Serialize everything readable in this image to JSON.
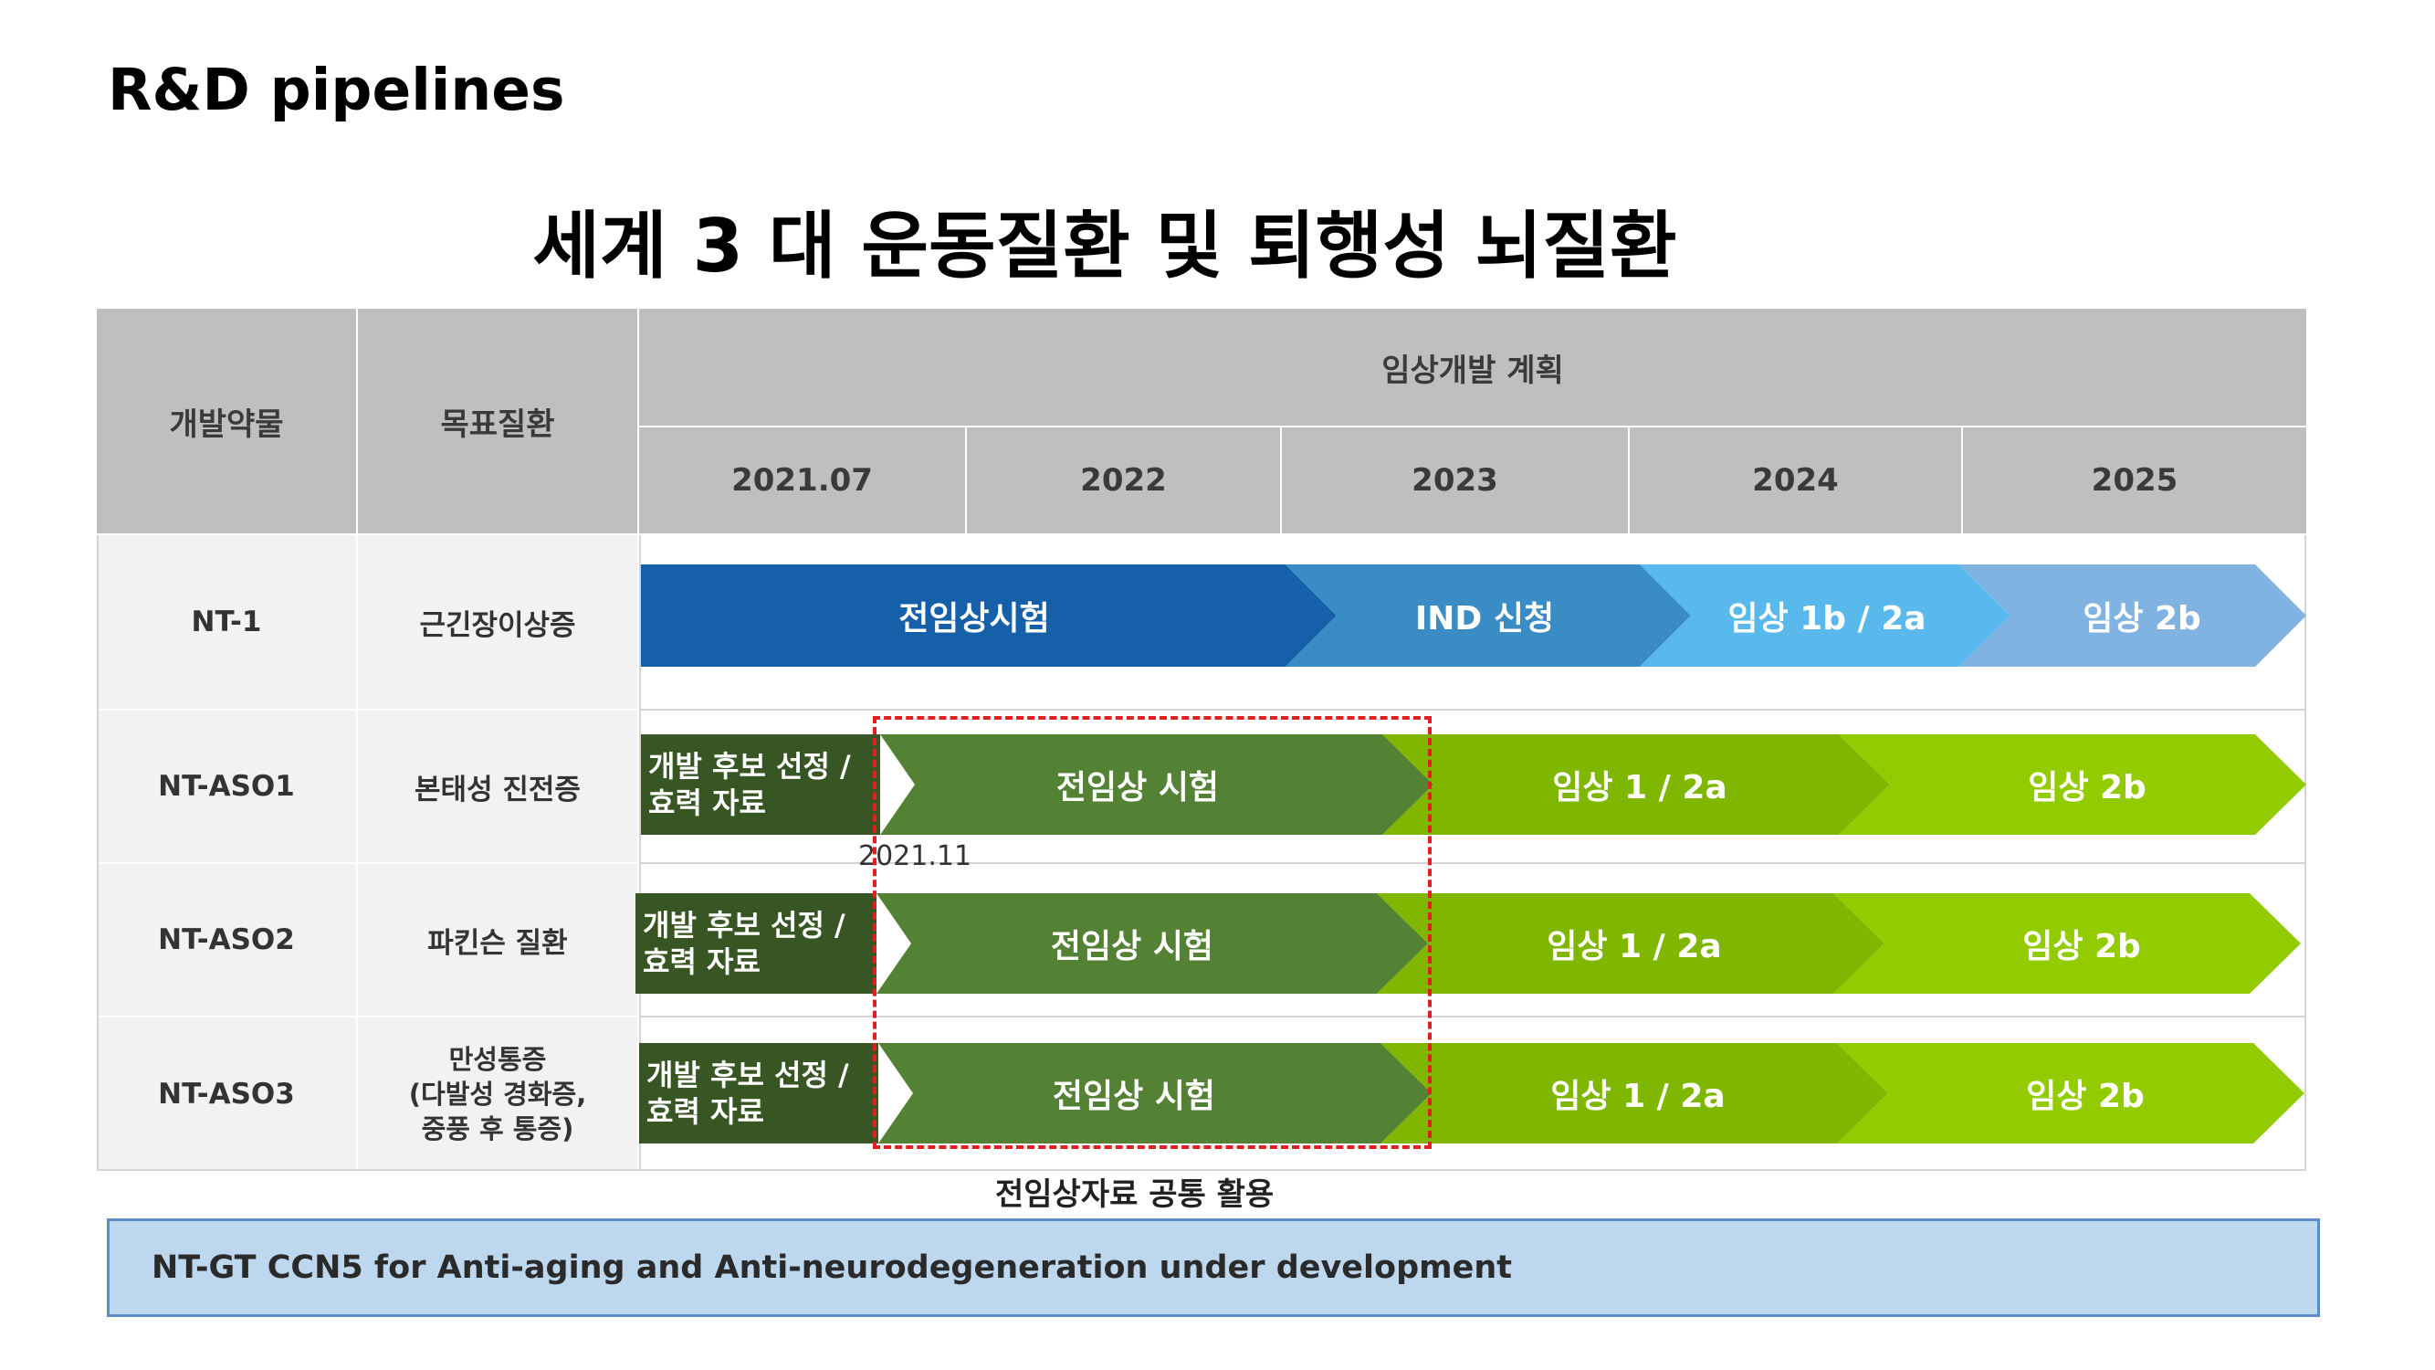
{
  "page": {
    "title": "R&D pipelines",
    "subtitle": "세계 3 대 운동질환 및 퇴행성 뇌질환"
  },
  "table": {
    "headers": {
      "drug": "개발약물",
      "disease": "목표질환",
      "plan": "임상개발 계획",
      "years": [
        "2021.07",
        "2022",
        "2023",
        "2024",
        "2025"
      ]
    },
    "rows": [
      {
        "drug": "NT-1",
        "disease": "근긴장이상증",
        "stages": [
          "전임상시험",
          "IND 신청",
          "임상 1b / 2a",
          "임상 2b"
        ]
      },
      {
        "drug": "NT-ASO1",
        "disease": "본태성 진전증",
        "stages": [
          "개발 후보 선정 / 효력 자료",
          "전임상 시험",
          "임상 1 / 2a",
          "임상 2b"
        ]
      },
      {
        "drug": "NT-ASO2",
        "disease": "파킨슨 질환",
        "stages": [
          "개발 후보 선정 / 효력 자료",
          "전임상 시험",
          "임상 1 / 2a",
          "임상 2b"
        ]
      },
      {
        "drug": "NT-ASO3",
        "disease_lines": [
          "만성통증",
          "(다발성 경화증,",
          "중풍 후 통증)"
        ],
        "stages": [
          "개발 후보 선정 / 효력 자료",
          "전임상 시험",
          "임상 1 / 2a",
          "임상 2b"
        ]
      }
    ],
    "annotation_date": "2021.11",
    "shared_note": "전임상자료 공통 활용"
  },
  "colors": {
    "nt1": [
      "#1560a8",
      "#3a8cc4",
      "#59b8ec",
      "#80b2e2"
    ],
    "aso": [
      "#375623",
      "#548235",
      "#7fb700",
      "#92cc00"
    ],
    "dashed_box": "#e02020",
    "footer_bg": "#bdd7ee"
  },
  "footer": {
    "text": "NT-GT CCN5 for Anti-aging and Anti-neurodegeneration under development"
  }
}
